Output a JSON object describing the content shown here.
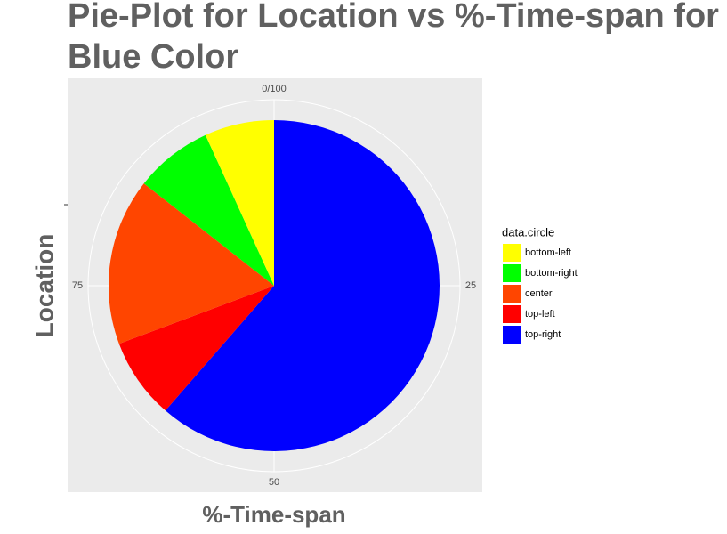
{
  "chart_data": {
    "type": "pie",
    "title": "Pie-Plot for Location vs %-Time-span for Blue Color",
    "x_label": "%-Time-span",
    "y_label": "Location",
    "legend_title": "data.circle",
    "categories": [
      "bottom-left",
      "bottom-right",
      "center",
      "top-left",
      "top-right"
    ],
    "values": [
      6.8,
      7.6,
      16.3,
      7.9,
      61.4
    ],
    "colors": [
      "#ffff00",
      "#00ff00",
      "#ff4500",
      "#ff0000",
      "#0000ff"
    ],
    "xlim": [
      0,
      100
    ],
    "xticks": [
      {
        "value": 0,
        "label": "0/100"
      },
      25,
      50,
      75
    ],
    "grid": true,
    "legend": "right"
  }
}
